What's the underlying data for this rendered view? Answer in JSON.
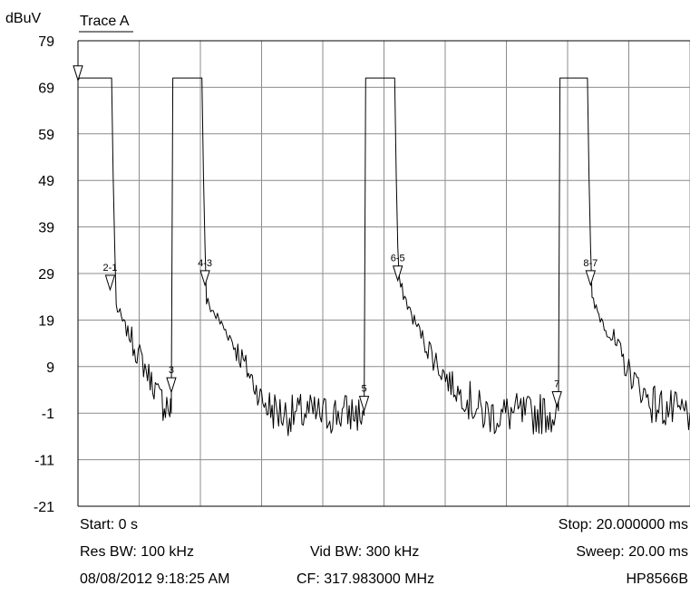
{
  "chart_data": {
    "type": "line",
    "ylabel": "dBuV",
    "legend": "Trace A",
    "y_ticks": [
      "79",
      "69",
      "59",
      "49",
      "39",
      "29",
      "19",
      "9",
      "-1",
      "-11",
      "-21"
    ],
    "ylim": [
      -21,
      79
    ],
    "xlim": [
      0,
      20
    ],
    "x_unit": "ms",
    "grid": true,
    "series": [
      {
        "points": [
          [
            0.0,
            70.5
          ],
          [
            0.05,
            71
          ],
          [
            1.0,
            71
          ],
          [
            1.05,
            71
          ],
          [
            1.1,
            71
          ],
          [
            1.15,
            50
          ],
          [
            1.2,
            35
          ],
          [
            1.25,
            22
          ],
          [
            1.5,
            18
          ],
          [
            1.8,
            14
          ],
          [
            2.1,
            10
          ],
          [
            2.4,
            6
          ],
          [
            2.7,
            2
          ],
          [
            2.9,
            1
          ],
          [
            3.0,
            0
          ],
          [
            3.05,
            -1
          ],
          [
            3.1,
            71
          ],
          [
            4.0,
            71
          ],
          [
            4.05,
            71
          ],
          [
            4.1,
            50
          ],
          [
            4.15,
            35
          ],
          [
            4.2,
            23
          ],
          [
            4.6,
            19
          ],
          [
            5.0,
            15
          ],
          [
            5.4,
            10
          ],
          [
            5.7,
            6
          ],
          [
            6.0,
            2
          ],
          [
            6.3,
            0
          ],
          [
            6.6,
            -1
          ],
          [
            7.0,
            -1.5
          ],
          [
            7.5,
            -1
          ],
          [
            8.0,
            -1.5
          ],
          [
            8.5,
            -1
          ],
          [
            9.0,
            -1
          ],
          [
            9.35,
            -1.5
          ],
          [
            9.4,
            71
          ],
          [
            10.3,
            71
          ],
          [
            10.35,
            71
          ],
          [
            10.4,
            50
          ],
          [
            10.45,
            35
          ],
          [
            10.5,
            27
          ],
          [
            10.9,
            20
          ],
          [
            11.3,
            15
          ],
          [
            11.7,
            10
          ],
          [
            12.1,
            6
          ],
          [
            12.5,
            3
          ],
          [
            12.9,
            1
          ],
          [
            13.2,
            -1
          ],
          [
            13.7,
            -1.5
          ],
          [
            14.2,
            -1
          ],
          [
            14.7,
            -1.5
          ],
          [
            15.2,
            -1
          ],
          [
            15.6,
            -1
          ],
          [
            15.7,
            -0.5
          ],
          [
            15.75,
            71
          ],
          [
            16.6,
            71
          ],
          [
            16.65,
            71
          ],
          [
            16.7,
            50
          ],
          [
            16.75,
            35
          ],
          [
            16.8,
            23
          ],
          [
            17.2,
            18
          ],
          [
            17.6,
            13
          ],
          [
            18.0,
            8
          ],
          [
            18.4,
            4
          ],
          [
            18.8,
            1
          ],
          [
            19.2,
            0
          ],
          [
            19.6,
            -1
          ],
          [
            20.0,
            -1
          ]
        ]
      }
    ],
    "markers": [
      {
        "label": "",
        "x": 0.0,
        "y": 70.5
      },
      {
        "label": "2-1",
        "x": 1.05,
        "y": 25.5
      },
      {
        "label": "3",
        "x": 3.05,
        "y": 3.5
      },
      {
        "label": "4-3",
        "x": 4.15,
        "y": 26.5
      },
      {
        "label": "5",
        "x": 9.35,
        "y": -0.5
      },
      {
        "label": "6-5",
        "x": 10.45,
        "y": 27.5
      },
      {
        "label": "7",
        "x": 15.65,
        "y": 0.5
      },
      {
        "label": "8-7",
        "x": 16.75,
        "y": 26.5
      }
    ]
  },
  "footer": {
    "start": "Start: 0 s",
    "stop": "Stop: 20.000000 ms",
    "res_bw": "Res BW: 100 kHz",
    "vid_bw": "Vid BW: 300 kHz",
    "sweep": "Sweep: 20.00 ms",
    "timestamp": "08/08/2012 9:18:25 AM",
    "cf": "CF: 317.983000 MHz",
    "instrument": "HP8566B"
  }
}
